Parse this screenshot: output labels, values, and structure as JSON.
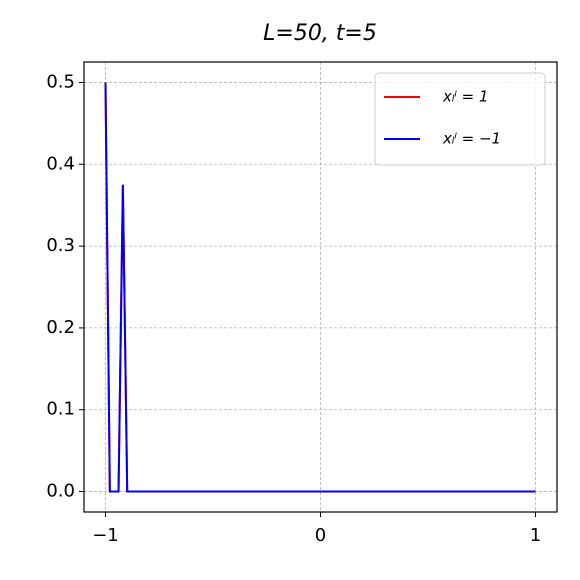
{
  "chart_data": {
    "type": "line",
    "title": "L=50, t=5",
    "series": [
      {
        "name": "xₗˡ = 1",
        "color": "#ff0000",
        "x": [
          -1,
          -0.9798,
          -0.9394,
          -0.9192,
          -0.899,
          1
        ],
        "values": [
          0.5,
          0,
          0,
          0.375,
          0,
          0
        ]
      },
      {
        "name": "xₗˡ = −1",
        "color": "#0000ff",
        "x": [
          -1,
          -0.9798,
          -0.9394,
          -0.9192,
          -0.899,
          1
        ],
        "values": [
          0.5,
          0,
          0,
          0.375,
          0,
          0
        ]
      }
    ],
    "xlim": [
      -1.1,
      1.1
    ],
    "ylim": [
      -0.025,
      0.525
    ],
    "xticks": [
      {
        "value": -1,
        "label": "−1"
      },
      0,
      1
    ],
    "yticks": [
      {
        "value": 0,
        "label": "0.0"
      },
      0.1,
      0.2,
      0.3,
      0.4,
      0.5
    ],
    "grid": true,
    "legend": "upper right"
  }
}
